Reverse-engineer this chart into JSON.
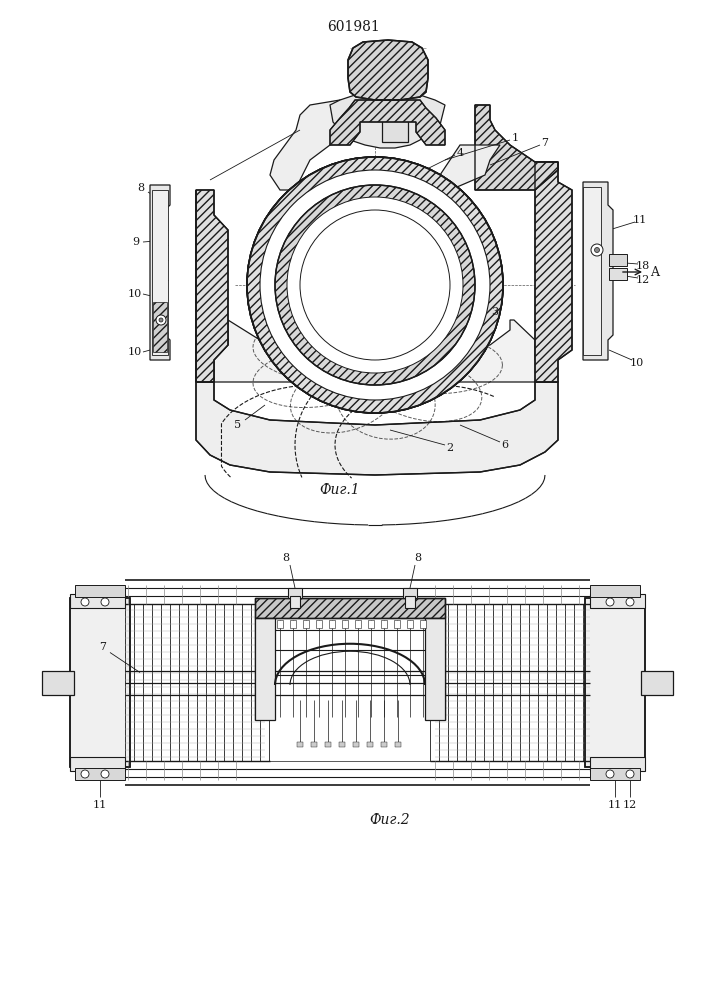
{
  "patent_number": "601981",
  "fig1_label": "Фиг.1",
  "fig2_label": "Фиг.2",
  "bg_color": "#ffffff",
  "lc": "#1a1a1a",
  "fig_size": [
    7.07,
    10.0
  ],
  "dpi": 100
}
